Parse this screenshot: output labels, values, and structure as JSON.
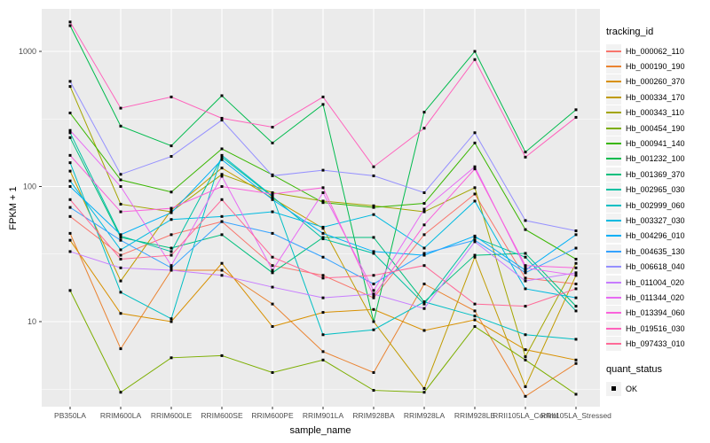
{
  "chart_data": {
    "type": "line",
    "title": "",
    "x_axis": {
      "label": "sample_name",
      "categories": [
        "PB350LA",
        "RRIM600LA",
        "RRIM600LE",
        "RRIM600SE",
        "RRIM600PE",
        "RRIM901LA",
        "RRIM928BA",
        "RRIM928LA",
        "RRIM928LE",
        "RRII105LA_Control",
        "RRII105LA_Stressed"
      ]
    },
    "y_axis": {
      "label": "FPKM + 1",
      "scale": "log10",
      "tick_values": [
        10,
        100,
        1000
      ],
      "tick_labels": [
        "10",
        "100",
        "1000"
      ],
      "range_hint": [
        2,
        1800
      ]
    },
    "grid": true,
    "panel_background": "#EBEBEB",
    "gridline_color": "#FFFFFF",
    "marker": {
      "shape": "square",
      "color": "#000000",
      "size": 3
    },
    "legend": {
      "title": "tracking_id",
      "position": "right"
    },
    "quant_status_legend": {
      "title": "quant_status",
      "items": [
        {
          "label": "OK",
          "marker": "black-square"
        }
      ]
    },
    "series": [
      {
        "name": "Hb_000062_110",
        "color": "#F8766D",
        "values": [
          60,
          31,
          44,
          55,
          26,
          22,
          15,
          44,
          88,
          21,
          19
        ]
      },
      {
        "name": "Hb_000190_190",
        "color": "#EA8331",
        "values": [
          45,
          6.3,
          24,
          24,
          13.5,
          6,
          4.2,
          19,
          12,
          2.8,
          4.9
        ]
      },
      {
        "name": "Hb_000260_370",
        "color": "#D89000",
        "values": [
          40,
          11.5,
          10,
          27,
          9.2,
          11.7,
          12.3,
          8.6,
          10.3,
          6.2,
          5.2
        ]
      },
      {
        "name": "Hb_000334_170",
        "color": "#C09B00",
        "values": [
          130,
          20,
          67,
          137,
          82,
          49,
          10,
          3.2,
          30,
          3.3,
          22
        ]
      },
      {
        "name": "Hb_000343_110",
        "color": "#A3A500",
        "values": [
          550,
          74,
          65,
          123,
          90,
          78,
          72,
          65,
          98,
          5.5,
          27
        ]
      },
      {
        "name": "Hb_000454_190",
        "color": "#7CAE00",
        "values": [
          17,
          3,
          5.4,
          5.6,
          4.2,
          5.2,
          3.1,
          3,
          9.2,
          5.2,
          2.9
        ]
      },
      {
        "name": "Hb_000941_140",
        "color": "#39B600",
        "values": [
          350,
          112,
          91,
          190,
          122,
          76,
          70,
          75,
          210,
          48,
          29
        ]
      },
      {
        "name": "Hb_001232_100",
        "color": "#00BB4E",
        "values": [
          1550,
          280,
          200,
          470,
          210,
          405,
          10,
          355,
          1000,
          180,
          370
        ]
      },
      {
        "name": "Hb_001369_370",
        "color": "#00BF7D",
        "values": [
          230,
          42,
          35,
          44,
          23,
          42,
          42,
          14,
          31,
          32,
          13
        ]
      },
      {
        "name": "Hb_002965_030",
        "color": "#00C1A3",
        "values": [
          250,
          43,
          33,
          165,
          84,
          41,
          32,
          13.5,
          42,
          30,
          12
        ]
      },
      {
        "name": "Hb_002999_060",
        "color": "#00BFC4",
        "values": [
          150,
          16.5,
          10.5,
          170,
          85,
          8,
          8.7,
          14,
          11,
          8,
          7.4
        ]
      },
      {
        "name": "Hb_003327_030",
        "color": "#00BAE0",
        "values": [
          110,
          34,
          57,
          60,
          65,
          50,
          62,
          35,
          78,
          17.5,
          15
        ]
      },
      {
        "name": "Hb_004296_010",
        "color": "#00B0F6",
        "values": [
          100,
          44,
          64,
          158,
          80,
          45,
          33,
          31,
          43,
          24,
          44
        ]
      },
      {
        "name": "Hb_004635_130",
        "color": "#35A2FF",
        "values": [
          70,
          40,
          25,
          55,
          45,
          30,
          19,
          32,
          40,
          23,
          35
        ]
      },
      {
        "name": "Hb_006618_040",
        "color": "#9590FF",
        "values": [
          600,
          123,
          167,
          310,
          120,
          132,
          120,
          90,
          250,
          56,
          47
        ]
      },
      {
        "name": "Hb_011004_020",
        "color": "#C77CFF",
        "values": [
          33,
          25,
          24,
          22,
          18,
          15,
          16,
          12.5,
          39,
          20,
          23
        ]
      },
      {
        "name": "Hb_011344_020",
        "color": "#E76BF3",
        "values": [
          260,
          100,
          26,
          119,
          24,
          90,
          17,
          68,
          140,
          25,
          22
        ]
      },
      {
        "name": "Hb_013394_060",
        "color": "#FA62DB",
        "values": [
          170,
          65,
          69,
          100,
          88,
          98,
          15.5,
          52,
          135,
          26,
          25
        ]
      },
      {
        "name": "Hb_019516_030",
        "color": "#FF62BC",
        "values": [
          1650,
          380,
          460,
          320,
          275,
          460,
          140,
          270,
          870,
          165,
          325
        ]
      },
      {
        "name": "Hb_097433_010",
        "color": "#FF6A98",
        "values": [
          80,
          29,
          31,
          80,
          30,
          21,
          22,
          26,
          13.5,
          13,
          17.5
        ]
      }
    ]
  }
}
